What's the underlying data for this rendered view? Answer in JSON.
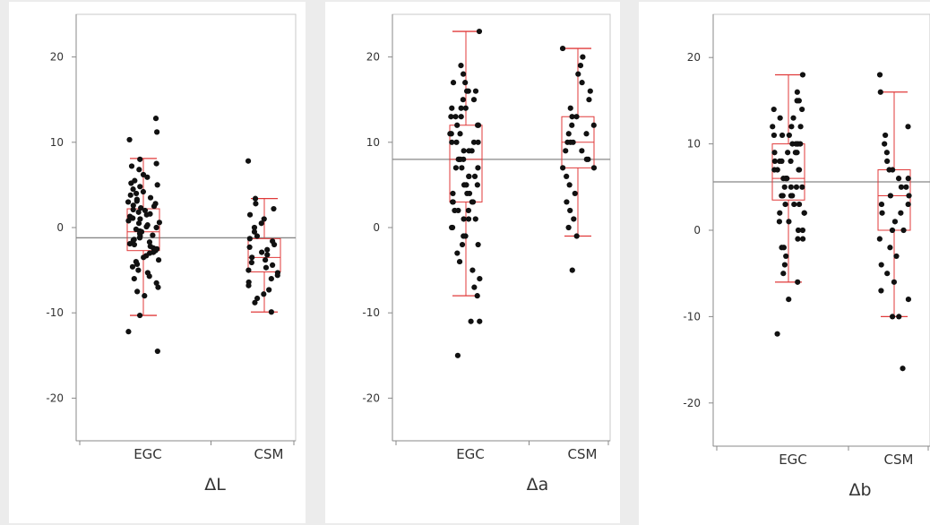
{
  "chart_data": [
    {
      "type": "scatter",
      "xlabel": "ΔL",
      "categories": [
        "EGC",
        "CSM"
      ],
      "ylim": [
        -25,
        25
      ],
      "yticks": [
        20,
        10,
        0,
        -10,
        -20
      ],
      "mean_line": -1.2,
      "boxes": [
        {
          "category": "EGC",
          "whisker_low": -10.3,
          "q1": -2.7,
          "median": -0.5,
          "q3": 2.2,
          "whisker_high": 8.1
        },
        {
          "category": "CSM",
          "whisker_low": -9.9,
          "q1": -5.2,
          "median": -3.5,
          "q3": -1.3,
          "whisker_high": 3.4
        }
      ],
      "points": [
        {
          "category": "EGC",
          "values": [
            12.8,
            11.2,
            10.3,
            8.0,
            7.5,
            7.2,
            6.8,
            6.2,
            5.9,
            5.5,
            5.2,
            5.0,
            4.8,
            4.5,
            4.2,
            4.0,
            3.8,
            3.5,
            3.3,
            3.1,
            3.0,
            2.8,
            2.6,
            2.5,
            2.3,
            2.1,
            2.0,
            1.8,
            1.6,
            1.5,
            1.3,
            1.1,
            1.0,
            0.8,
            0.6,
            0.5,
            0.3,
            0.1,
            0.0,
            -0.2,
            -0.4,
            -0.5,
            -0.7,
            -0.9,
            -1.0,
            -1.2,
            -1.4,
            -1.5,
            -1.7,
            -1.9,
            -2.0,
            -2.2,
            -2.4,
            -2.5,
            -2.7,
            -2.9,
            -3.0,
            -3.3,
            -3.5,
            -3.8,
            -4.0,
            -4.3,
            -4.6,
            -5.0,
            -5.3,
            -5.7,
            -6.0,
            -6.5,
            -7.0,
            -7.5,
            -8.0,
            -10.3,
            -12.2,
            -14.5
          ]
        },
        {
          "category": "CSM",
          "values": [
            7.8,
            3.4,
            2.8,
            2.2,
            1.5,
            1.0,
            0.5,
            0.0,
            -0.5,
            -1.0,
            -1.3,
            -1.6,
            -2.0,
            -2.3,
            -2.6,
            -2.9,
            -3.2,
            -3.5,
            -3.8,
            -4.1,
            -4.4,
            -4.7,
            -5.0,
            -5.3,
            -5.6,
            -6.0,
            -6.4,
            -6.8,
            -7.3,
            -7.8,
            -8.3,
            -8.8,
            -9.9
          ]
        }
      ]
    },
    {
      "type": "scatter",
      "xlabel": "Δa",
      "categories": [
        "EGC",
        "CSM"
      ],
      "ylim": [
        -25,
        25
      ],
      "yticks": [
        20,
        10,
        0,
        -10,
        -20
      ],
      "mean_line": 8.0,
      "boxes": [
        {
          "category": "EGC",
          "whisker_low": -8.0,
          "q1": 3.0,
          "median": 8.0,
          "q3": 12.0,
          "whisker_high": 23.0
        },
        {
          "category": "CSM",
          "whisker_low": -1.0,
          "q1": 7.0,
          "median": 10.0,
          "q3": 13.0,
          "whisker_high": 21.0
        }
      ],
      "points": [
        {
          "category": "EGC",
          "values": [
            23,
            19,
            18,
            17,
            17,
            16,
            16,
            16,
            15,
            15,
            14,
            14,
            14,
            13,
            13,
            13,
            12,
            12,
            12,
            11,
            11,
            11,
            10,
            10,
            10,
            10,
            9,
            9,
            9,
            8,
            8,
            8,
            8,
            7,
            7,
            7,
            6,
            6,
            6,
            5,
            5,
            5,
            4,
            4,
            4,
            3,
            3,
            3,
            3,
            2,
            2,
            2,
            1,
            1,
            1,
            0,
            0,
            -1,
            -1,
            -2,
            -2,
            -3,
            -4,
            -5,
            -6,
            -7,
            -8,
            -11,
            -11,
            -15
          ]
        },
        {
          "category": "CSM",
          "values": [
            21,
            20,
            19,
            18,
            17,
            16,
            15,
            14,
            13,
            13,
            12,
            12,
            11,
            11,
            10,
            10,
            10,
            9,
            9,
            8,
            8,
            7,
            7,
            6,
            5,
            4,
            3,
            2,
            1,
            0,
            -1,
            -5
          ]
        }
      ]
    },
    {
      "type": "scatter",
      "xlabel": "Δb",
      "categories": [
        "EGC",
        "CSM"
      ],
      "ylim": [
        -25,
        25
      ],
      "yticks": [
        20,
        10,
        0,
        -10,
        -20
      ],
      "mean_line": 5.6,
      "boxes": [
        {
          "category": "EGC",
          "whisker_low": -6.0,
          "q1": 3.5,
          "median": 6.0,
          "q3": 10.0,
          "whisker_high": 18.0
        },
        {
          "category": "CSM",
          "whisker_low": -10.0,
          "q1": 0.0,
          "median": 4.0,
          "q3": 7.0,
          "whisker_high": 16.0
        }
      ],
      "points": [
        {
          "category": "EGC",
          "values": [
            18,
            16,
            15,
            15,
            14,
            14,
            13,
            13,
            12,
            12,
            12,
            11,
            11,
            11,
            10,
            10,
            10,
            10,
            9,
            9,
            9,
            9,
            8,
            8,
            8,
            8,
            7,
            7,
            7,
            7,
            6,
            6,
            6,
            6,
            5,
            5,
            5,
            5,
            4,
            4,
            4,
            4,
            3,
            3,
            3,
            2,
            2,
            2,
            1,
            1,
            0,
            0,
            -1,
            -1,
            -2,
            -2,
            -3,
            -4,
            -5,
            -6,
            -8,
            -12
          ]
        },
        {
          "category": "CSM",
          "values": [
            18,
            16,
            12,
            11,
            10,
            9,
            8,
            7,
            7,
            6,
            6,
            5,
            5,
            4,
            4,
            3,
            3,
            2,
            2,
            1,
            0,
            0,
            -1,
            -2,
            -3,
            -4,
            -5,
            -6,
            -7,
            -8,
            -10,
            -10,
            -16
          ]
        }
      ]
    }
  ]
}
